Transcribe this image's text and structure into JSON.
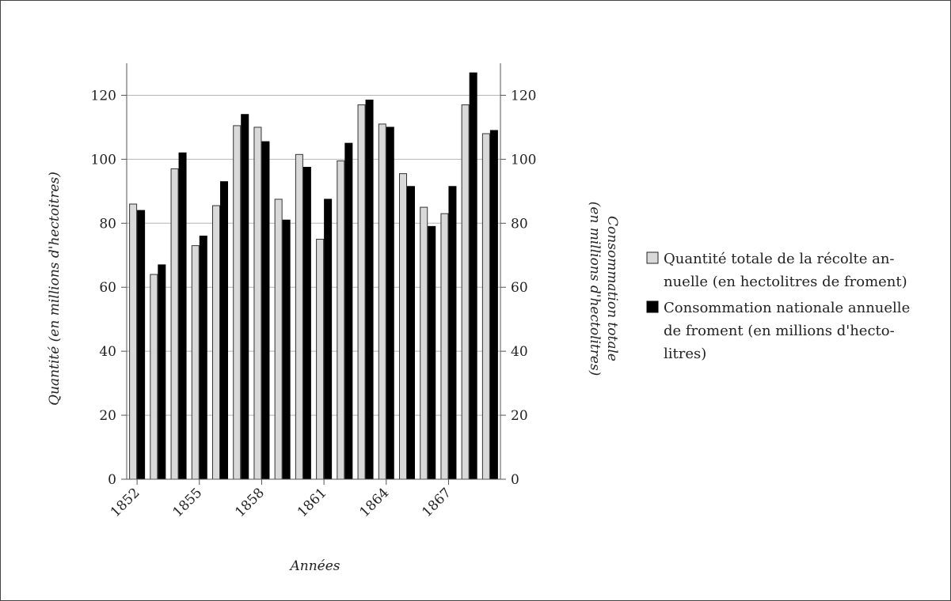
{
  "chart_data": {
    "type": "bar",
    "xlabel": "Années",
    "ylabel_left": "Quantité (en millions d'hectoitres)",
    "ylabel_right_line1": "Consommation totale",
    "ylabel_right_line2": "(en millions d'hectolitres)",
    "ylim": [
      0,
      130
    ],
    "yticks": [
      0,
      20,
      40,
      60,
      80,
      100,
      120
    ],
    "grid": "horizontal",
    "legend_position": "right",
    "categories": [
      1852,
      1853,
      1854,
      1855,
      1856,
      1857,
      1858,
      1859,
      1860,
      1861,
      1862,
      1863,
      1864,
      1865,
      1866,
      1867,
      1868,
      1869
    ],
    "x_tick_labels": [
      "1852",
      "1855",
      "1858",
      "1861",
      "1864",
      "1867"
    ],
    "series": [
      {
        "name": "Quantité totale de la récolte annuelle (en hectolitres de froment)",
        "legend_lines": [
          "Quantité totale de la récolte an-",
          "nuelle (en hectolitres de froment)"
        ],
        "color": "#d9d9d9",
        "values": [
          86,
          64,
          97,
          73,
          85.5,
          110.5,
          110,
          87.5,
          101.5,
          75,
          99.5,
          117,
          111,
          95.5,
          85,
          83,
          117,
          108
        ]
      },
      {
        "name": "Consommation nationale annuelle de froment (en millions d'hectolitres)",
        "legend_lines": [
          "Consommation nationale annuelle",
          "de froment (en millions d'hecto-",
          "litres)"
        ],
        "color": "#000000",
        "values": [
          84,
          67,
          102,
          76,
          93,
          114,
          105.5,
          81,
          97.5,
          87.5,
          105,
          118.5,
          110,
          91.5,
          79,
          91.5,
          127,
          109
        ]
      }
    ]
  }
}
